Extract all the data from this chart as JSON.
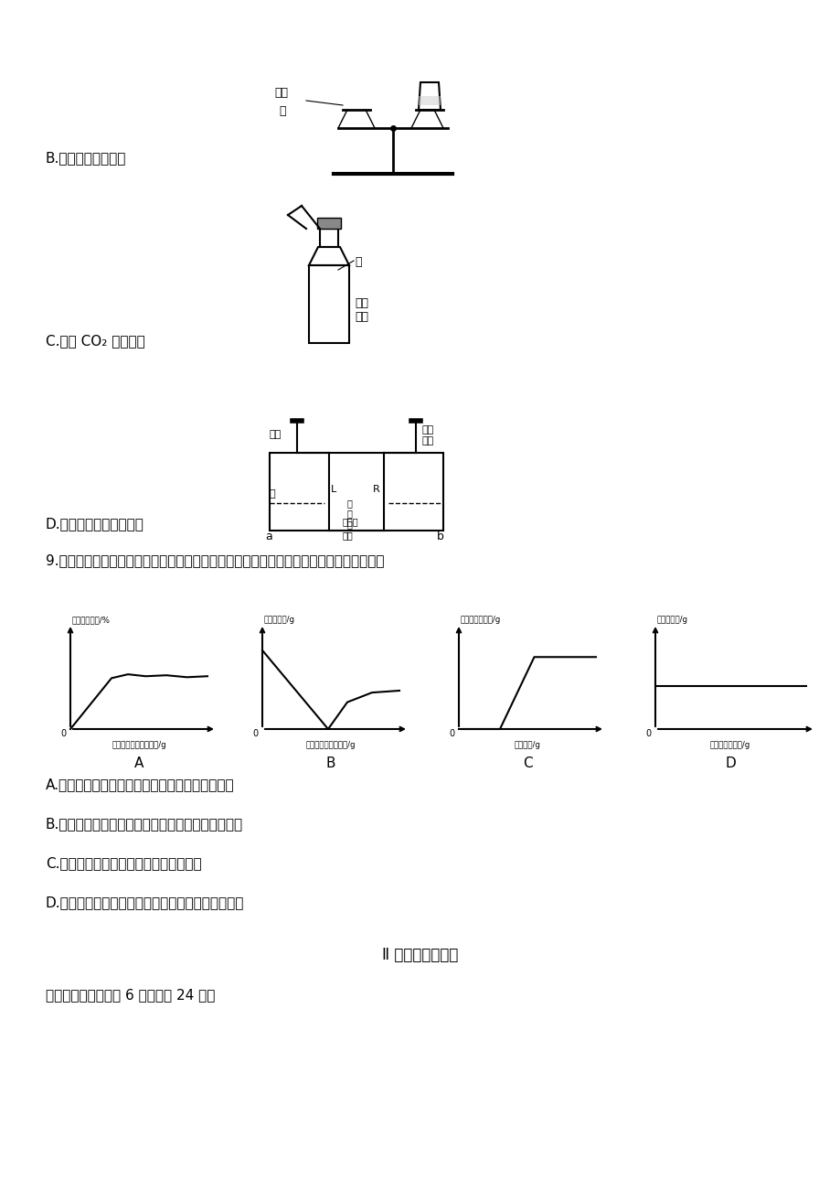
{
  "background_color": "#ffffff",
  "label_B": "B.验证质量守恒定律",
  "label_C": "C.探究 CO₂ 与水反应",
  "label_D": "D.探究铁生锈条件需要水",
  "question9_text": "9.一定温度下，向不饱和硫酸铜溶液中分别加入足量的下列物质，其对应关系正确的是（）",
  "graph_A_ylabel": "溶质质量分数/%",
  "graph_A_xlabel": "加入硫酸铜固体的质量/g",
  "graph_A_label": "A",
  "graph_B_ylabel": "溶液的质量/g",
  "graph_B_xlabel": "氢氧化钡固体的质量/g",
  "graph_B_label": "B",
  "graph_C_ylabel": "剩余固体的质量/g",
  "graph_C_xlabel": "锌粉质量/g",
  "graph_C_label": "C",
  "graph_D_ylabel": "溶液总质量/g",
  "graph_D_xlabel": "氯化钠溶液质量/g",
  "graph_D_label": "D",
  "answer_A": "A.向不饱和的硫酸铜溶液中加入足量的硫酸铜固体",
  "answer_B": "B.向不饱和的硫酸铜溶液中加入足量的氢氧化钡固体",
  "answer_C": "C.向不饱和的硫酸铜溶液中加入足量锌粉",
  "answer_D": "D.向不饱和的硫酸铜溶液中加入足盘的氯化钠溶液第",
  "section2_title": "Ⅱ 卷（非选择题）",
  "section2_subtitle": "二、填空题（本题共 6 小题，计 24 分）"
}
